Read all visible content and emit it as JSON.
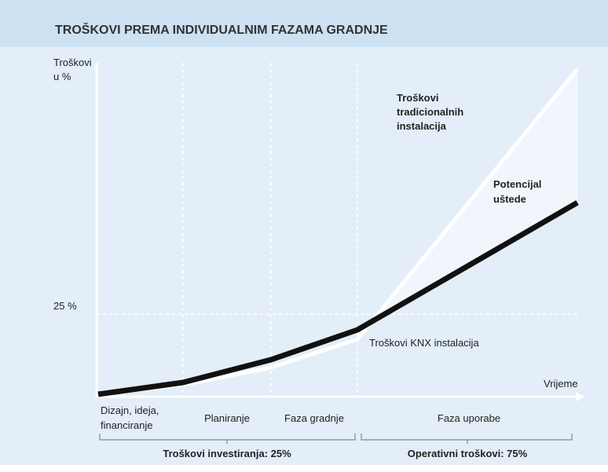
{
  "header": {
    "title": "TROŠKOVI PREMA INDIVIDUALNIM FAZAMA GRADNJE"
  },
  "axes": {
    "y_label": [
      "Troškovi",
      "u %"
    ],
    "y_mark": "25 %",
    "x_label": "Vrijeme"
  },
  "annotations": {
    "traditional": [
      "Troškovi",
      "tradicionalnih",
      "instalacija"
    ],
    "savings": [
      "Potencijal",
      "uštede"
    ],
    "knx": "Troškovi KNX instalacija"
  },
  "phases": [
    [
      "Dizajn, ideja,",
      "financiranje"
    ],
    [
      "Planiranje"
    ],
    [
      "Faza gradnje"
    ],
    [
      "Faza uporabe"
    ]
  ],
  "groups": [
    "Troškovi investiranja: 25%",
    "Operativni troškovi: 75%"
  ]
}
